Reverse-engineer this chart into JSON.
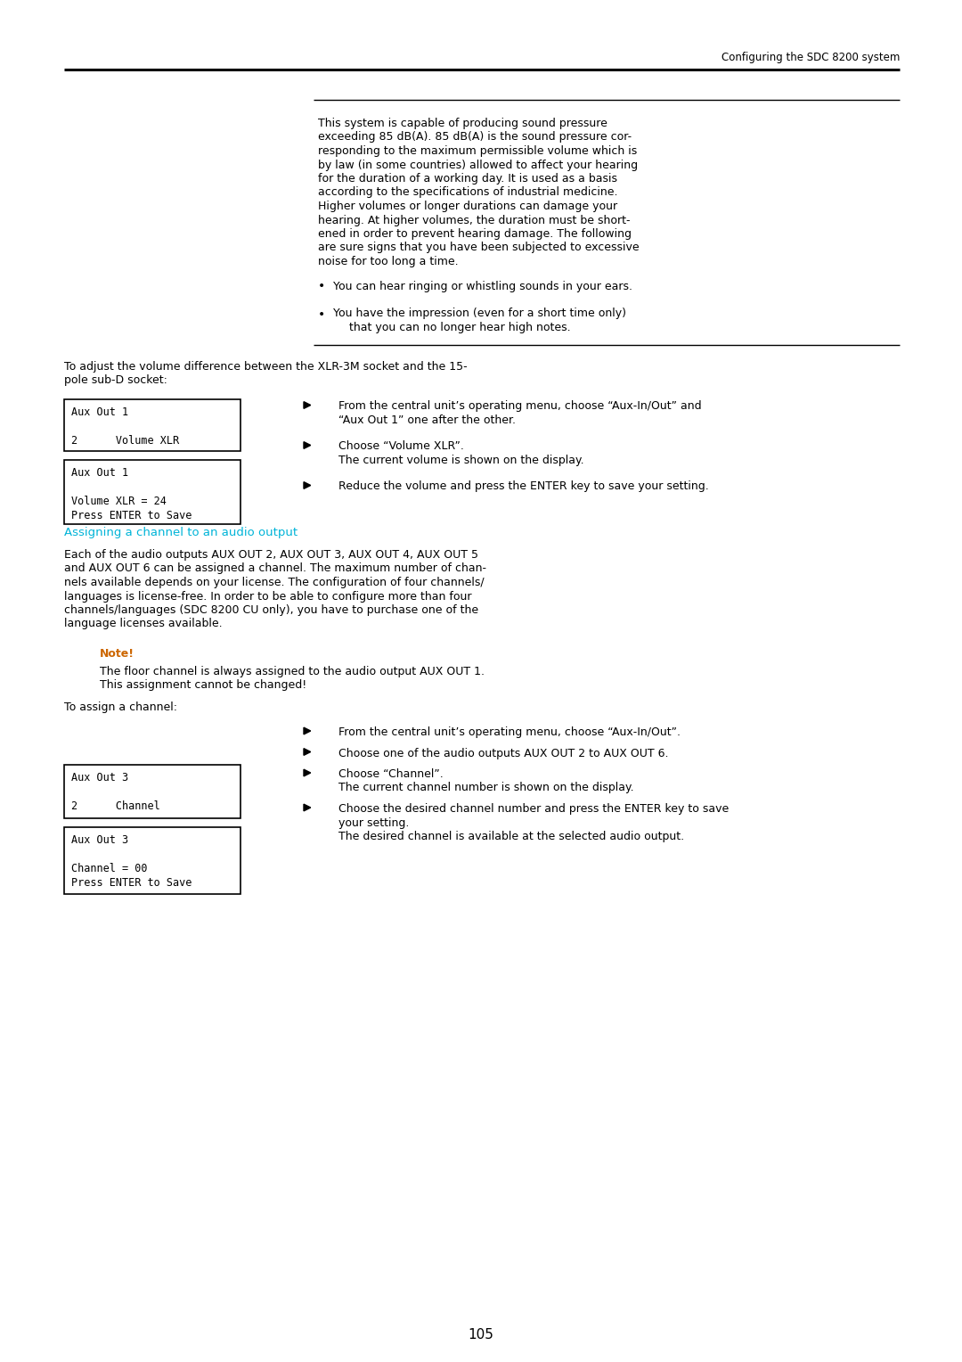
{
  "bg_color": "#ffffff",
  "text_color": "#000000",
  "header_text": "Configuring the SDC 8200 system",
  "page_number": "105",
  "warning_text": [
    "This system is capable of producing sound pressure",
    "exceeding 85 dB(A). 85 dB(A) is the sound pressure cor-",
    "responding to the maximum permissible volume which is",
    "by law (in some countries) allowed to affect your hearing",
    "for the duration of a working day. It is used as a basis",
    "according to the specifications of industrial medicine.",
    "Higher volumes or longer durations can damage your",
    "hearing. At higher volumes, the duration must be short-",
    "ened in order to prevent hearing damage. The following",
    "are sure signs that you have been subjected to excessive",
    "noise for too long a time."
  ],
  "bullet1": "You can hear ringing or whistling sounds in your ears.",
  "bullet2a": "You have the impression (even for a short time only)",
  "bullet2b": "that you can no longer hear high notes.",
  "xlr_intro1": "To adjust the volume difference between the XLR-3M socket and the 15-",
  "xlr_intro2": "pole sub-D socket:",
  "step1a": "From the central unit’s operating menu, choose “Aux-In/Out” and",
  "step1b": "“Aux Out 1” one after the other.",
  "step2a": "Choose “Volume XLR”.",
  "step2b": "The current volume is shown on the display.",
  "step3": "Reduce the volume and press the ENTER key to save your setting.",
  "lcd1": [
    "Aux Out 1",
    "2      Volume XLR"
  ],
  "lcd2": [
    "Aux Out 1",
    "Volume XLR = 24",
    "Press ENTER to Save"
  ],
  "section_title": "Assigning a channel to an audio output",
  "section_body": [
    "Each of the audio outputs AUX OUT 2, AUX OUT 3, AUX OUT 4, AUX OUT 5",
    "and AUX OUT 6 can be assigned a channel. The maximum number of chan-",
    "nels available depends on your license. The configuration of four channels/",
    "languages is license-free. In order to be able to configure more than four",
    "channels/languages (SDC 8200 CU only), you have to purchase one of the",
    "language licenses available."
  ],
  "note_label": "Note!",
  "note1": "The floor channel is always assigned to the audio output AUX OUT 1.",
  "note2": "This assignment cannot be changed!",
  "assign_intro": "To assign a channel:",
  "as1": "From the central unit’s operating menu, choose “Aux-In/Out”.",
  "as2": "Choose one of the audio outputs AUX OUT 2 to AUX OUT 6.",
  "as3a": "Choose “Channel”.",
  "as3b": "The current channel number is shown on the display.",
  "as4a": "Choose the desired channel number and press the ENTER key to save",
  "as4b": "your setting.",
  "as4c": "The desired channel is available at the selected audio output.",
  "lcd3": [
    "Aux Out 3",
    "2      Channel"
  ],
  "lcd4": [
    "Aux Out 3",
    "Channel = 00",
    "Press ENTER to Save"
  ],
  "cyan_color": "#00b4d8",
  "note_color": "#cc6600",
  "mono_font": "monospace",
  "body_font": "DejaVu Sans"
}
